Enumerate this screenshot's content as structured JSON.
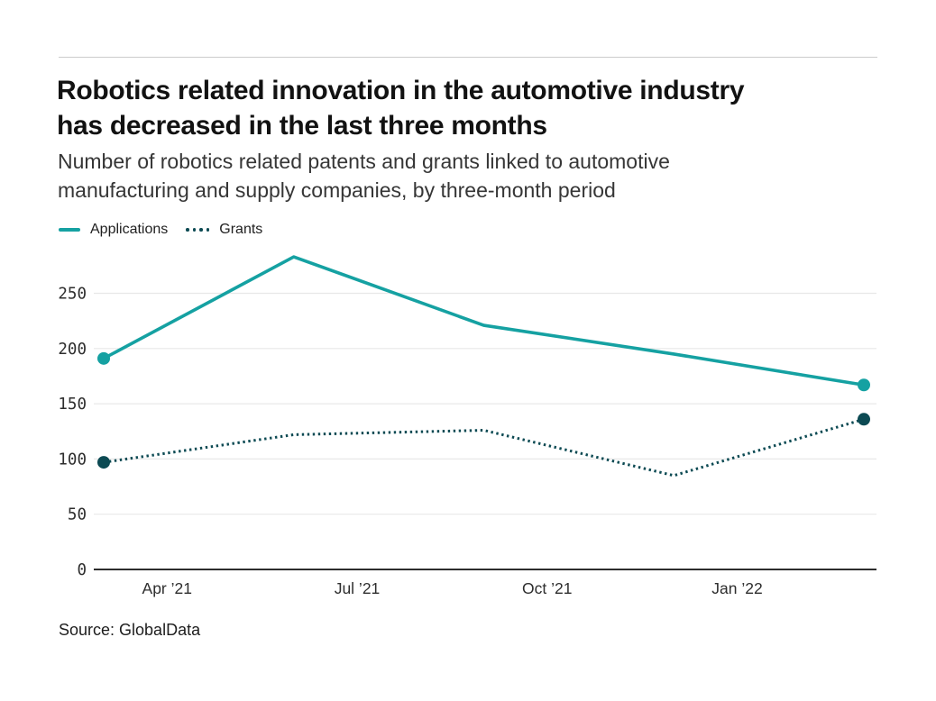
{
  "page": {
    "title_lines": [
      "Robotics related innovation in the automotive industry",
      "has decreased in the last three months"
    ],
    "subtitle_lines": [
      "Number of robotics related patents and grants linked to automotive",
      "manufacturing and supply companies, by three-month period"
    ],
    "source": "Source: GlobalData"
  },
  "colors": {
    "applications_teal": "#15a1a2",
    "grants_dark_teal": "#0c4a53",
    "gridline": "#e8e8e8",
    "axis_baseline": "#2d2d2d",
    "top_rule": "#cbcbcb"
  },
  "chart_data": {
    "type": "line",
    "title": "Robotics related innovation in the automotive industry has decreased in the last three months",
    "subtitle": "Number of robotics related patents and grants linked to automotive manufacturing and supply companies, by three-month period",
    "x_tick_labels": [
      "Apr ’21",
      "Jul ’21",
      "Oct ’21",
      "Jan ’22"
    ],
    "y_ticks": [
      0,
      50,
      100,
      150,
      200,
      250
    ],
    "ylim": [
      0,
      290
    ],
    "grid": "horizontal",
    "legend_position": "top-left",
    "points_per_series": 5,
    "x_period_note": "five evenly spaced three-month periods; labeled ticks fall one month after each data point",
    "series": [
      {
        "name": "Applications",
        "style": "solid",
        "color": "#15a1a2",
        "values": [
          191,
          283,
          221,
          195,
          167
        ],
        "markers": "first-last"
      },
      {
        "name": "Grants",
        "style": "dotted",
        "color": "#0c4a53",
        "values": [
          97,
          122,
          126,
          85,
          136
        ],
        "markers": "first-last"
      }
    ],
    "source": "Source: GlobalData"
  }
}
